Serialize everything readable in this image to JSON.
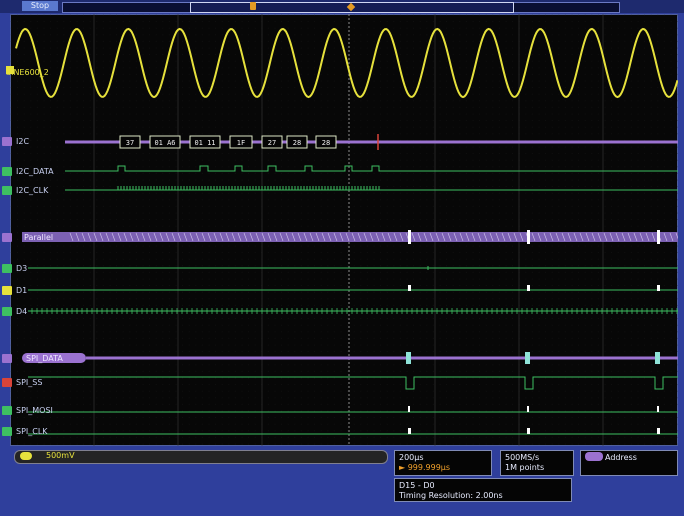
{
  "status": {
    "acq_state": "Stop"
  },
  "channels": {
    "ch1_label": "SINE600_2",
    "i2c_bus_label": "I2C",
    "i2c_data_label": "I2C_DATA",
    "i2c_clk_label": "I2C_CLK",
    "parallel_bus_label": "Parallel",
    "d3_label": "D3",
    "d1_label": "D1",
    "d4_label": "D4",
    "spi_bus_label": "SPI_DATA",
    "spi_ss_label": "SPI_SS",
    "spi_mosi_label": "SPI_MOSI",
    "spi_clk_label": "SPI_CLK"
  },
  "decode": {
    "i2c_packets": [
      "37",
      "01 A6",
      "01 11",
      "1F",
      "27",
      "28",
      "28"
    ]
  },
  "readouts": {
    "ch1_scale": "500mV",
    "timebase": "200µs",
    "trigger_position": "► 999.999µs",
    "sample_rate": "500MS/s",
    "record_length": "1M points",
    "trigger_type": "Address",
    "digital_channels": "D15 - D0",
    "timing_resolution": "Timing Resolution: 2.00ns"
  },
  "colors": {
    "ch1": "#e6e13c",
    "bus": "#9b72d0",
    "digital": "#3ebf62",
    "high_marker": "#ffffff",
    "trigger": "#e39a24",
    "background": "#2f3f9c",
    "grid_center": "#a0a0a0"
  },
  "icons": {
    "trigger": "trigger-marker-icon",
    "cursor": "cursor-marker-icon"
  }
}
